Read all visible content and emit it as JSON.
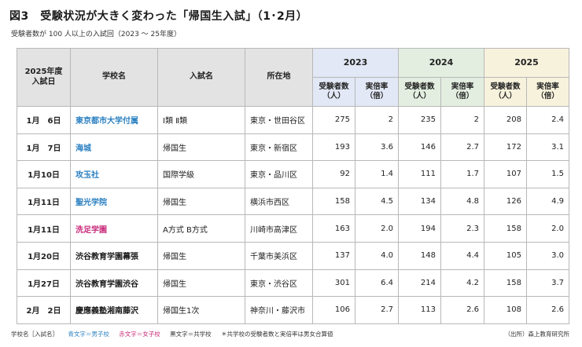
{
  "title": "図3　受験状況が大きく変わった「帰国生入試」（1･2月）",
  "subtitle": "受験者数が 100 人以上の入試回（2023 ～ 25年度）",
  "table": {
    "headers": {
      "date": "2025年度\n入試日",
      "school": "学校名",
      "exam": "入試名",
      "location": "所在地",
      "years": [
        "2023",
        "2024",
        "2025"
      ],
      "applicants": "受験者数\n（人）",
      "ratio": "実倍率\n（倍）"
    },
    "rows": [
      {
        "date": "1月　6日",
        "school": "東京都市大学付属",
        "type": "boys",
        "exam": "Ⅰ類 Ⅱ類",
        "location": "東京・世田谷区",
        "a2023": "275",
        "r2023": "2",
        "a2024": "235",
        "r2024": "2",
        "a2025": "208",
        "r2025": "2.4"
      },
      {
        "date": "1月　7日",
        "school": "海城",
        "type": "boys",
        "exam": "帰国生",
        "location": "東京・新宿区",
        "a2023": "193",
        "r2023": "3.6",
        "a2024": "146",
        "r2024": "2.7",
        "a2025": "172",
        "r2025": "3.1"
      },
      {
        "date": "1月10日",
        "school": "攻玉社",
        "type": "boys",
        "exam": "国際学級",
        "location": "東京・品川区",
        "a2023": "92",
        "r2023": "1.4",
        "a2024": "111",
        "r2024": "1.7",
        "a2025": "107",
        "r2025": "1.5"
      },
      {
        "date": "1月11日",
        "school": "聖光学院",
        "type": "boys",
        "exam": "帰国生",
        "location": "横浜市西区",
        "a2023": "158",
        "r2023": "4.5",
        "a2024": "134",
        "r2024": "4.8",
        "a2025": "126",
        "r2025": "4.9"
      },
      {
        "date": "1月11日",
        "school": "洗足学園",
        "type": "girls",
        "exam": "A方式 B方式",
        "location": "川崎市高津区",
        "a2023": "163",
        "r2023": "2.0",
        "a2024": "194",
        "r2024": "2.3",
        "a2025": "158",
        "r2025": "2.0"
      },
      {
        "date": "1月20日",
        "school": "渋谷教育学園幕張",
        "type": "coed",
        "exam": "帰国生",
        "location": "千葉市美浜区",
        "a2023": "137",
        "r2023": "4.0",
        "a2024": "148",
        "r2024": "4.4",
        "a2025": "105",
        "r2025": "3.0"
      },
      {
        "date": "1月27日",
        "school": "渋谷教育学園渋谷",
        "type": "coed",
        "exam": "帰国生",
        "location": "東京・渋谷区",
        "a2023": "301",
        "r2023": "6.4",
        "a2024": "214",
        "r2024": "4.2",
        "a2025": "158",
        "r2025": "3.7"
      },
      {
        "date": "2月　2日",
        "school": "慶應義塾湘南藤沢",
        "type": "coed",
        "exam": "帰国生1次",
        "location": "神奈川・藤沢市",
        "a2023": "106",
        "r2023": "2.7",
        "a2024": "113",
        "r2024": "2.6",
        "a2025": "108",
        "r2025": "2.6"
      }
    ]
  },
  "footer": {
    "legend": "学校名［入試名］",
    "boys": "青文字＝男子校",
    "girls": "赤文字＝女子校",
    "coed": "黒文字＝共学校",
    "note": "＊共学校の受験者数と実倍率は男女合算値",
    "source": "（出所）森上教育研究所"
  },
  "colors": {
    "boys": "#2a7fc1",
    "girls": "#c8287a",
    "header_2023": "#e2e8f5",
    "header_2024": "#e3eee0",
    "header_2025": "#f7f2dc"
  }
}
